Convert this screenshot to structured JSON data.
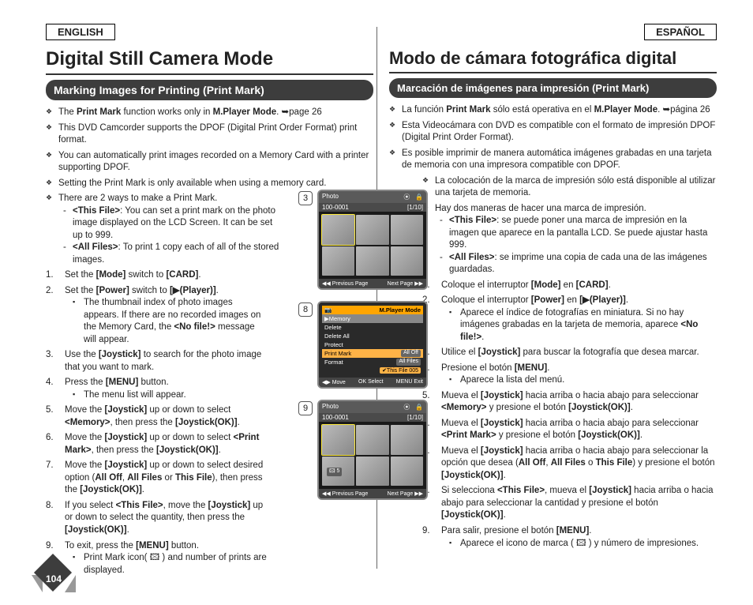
{
  "lang": {
    "en": "ENGLISH",
    "es": "ESPAÑOL"
  },
  "page_number": "104",
  "en": {
    "title": "Digital Still Camera Mode",
    "section": "Marking Images for Printing (Print Mark)",
    "bullets": [
      "The <b>Print Mark</b> function works only in <b>M.Player Mode</b>. ➥page 26",
      "This DVD Camcorder supports the DPOF (Digital Print Order Format) print format.",
      "You can automatically print images recorded on a Memory Card with a printer supporting DPOF.",
      "Setting the Print Mark is only available when using a memory card.",
      "There are 2 ways to make a Print Mark."
    ],
    "dash": [
      "<b>&lt;This File&gt;</b>: You can set a print mark on the photo image displayed on the LCD Screen. It can be set up to 999.",
      "<b>&lt;All Files&gt;</b>: To print 1 copy each of all of the stored images."
    ],
    "steps": [
      "Set the <b>[Mode]</b> switch to <b>[CARD]</b>.",
      "Set the <b>[Power]</b> switch to <b>[▶(Player)]</b>.",
      "Use the <b>[Joystick]</b> to search for the photo image that you want to mark.",
      "Press the <b>[MENU]</b> button.",
      "Move the <b>[Joystick]</b> up or down to select <b>&lt;Memory&gt;</b>, then press the <b>[Joystick(OK)]</b>.",
      "Move the <b>[Joystick]</b> up or down to select <b>&lt;Print Mark&gt;</b>, then press the <b>[Joystick(OK)]</b>.",
      "Move the <b>[Joystick]</b> up or down to select desired option (<b>All Off</b>, <b>All Files</b> or <b>This File</b>), then press the <b>[Joystick(OK)]</b>.",
      "If you select <b>&lt;This File&gt;</b>, move the <b>[Joystick]</b> up or down to select the quantity, then press the <b>[Joystick(OK)]</b>.",
      "To exit, press the <b>[MENU]</b> button."
    ],
    "step2_sub": "The thumbnail index of photo images appears. If there are no recorded images on the Memory Card, the <b>&lt;No file!&gt;</b> message will appear.",
    "step4_sub": "The menu list will appear.",
    "step9_sub": "Print Mark icon( 🖾 ) and number of prints are displayed."
  },
  "es": {
    "title": "Modo de cámara fotográfica digital",
    "section": "Marcación de imágenes para impresión (Print Mark)",
    "bullets": [
      "La función <b>Print Mark</b> sólo está operativa en el <b>M.Player Mode</b>. ➥página 26",
      "Esta Videocámara con DVD es compatible con el formato de impresión DPOF (Digital Print Order Format).",
      "Es posible imprimir de manera automática imágenes grabadas en una tarjeta de memoria con una impresora compatible con DPOF."
    ],
    "bullets_indent": [
      "La colocación de la marca de impresión sólo está disponible al utilizar una tarjeta de memoria.",
      "Hay dos maneras de hacer una marca de impresión."
    ],
    "dash": [
      "<b>&lt;This File&gt;</b>: se puede poner una marca de impresión en la imagen que aparece en la pantalla LCD. Se puede ajustar hasta 999.",
      "<b>&lt;All Files&gt;</b>: se imprime una copia de cada una de las imágenes guardadas."
    ],
    "steps": [
      "Coloque el interruptor <b>[Mode]</b> en <b>[CARD]</b>.",
      "Coloque el interruptor <b>[Power]</b> en <b>[▶(Player)]</b>.",
      "Utilice el <b>[Joystick]</b> para buscar la fotografía que desea marcar.",
      "Presione el botón <b>[MENU]</b>.",
      "Mueva el <b>[Joystick]</b> hacia arriba o hacia abajo para seleccionar <b>&lt;Memory&gt;</b> y presione el botón <b>[Joystick(OK)]</b>.",
      "Mueva el <b>[Joystick]</b> hacia arriba o hacia abajo para seleccionar <b>&lt;Print Mark&gt;</b> y presione el botón <b>[Joystick(OK)]</b>.",
      "Mueva el <b>[Joystick]</b> hacia arriba o hacia abajo para seleccionar la opción que desea (<b>All Off</b>, <b>All Files</b> o <b>This File</b>) y presione el botón <b>[Joystick(OK)]</b>.",
      "Si selecciona <b>&lt;This File&gt;</b>, mueva el <b>[Joystick]</b> hacia arriba o hacia abajo para seleccionar la cantidad y presione el botón <b>[Joystick(OK)]</b>.",
      "Para salir, presione el botón <b>[MENU]</b>."
    ],
    "step2_sub": "Aparece el índice de fotografías en miniatura. Si no hay imágenes grabadas en la tarjeta de memoria, aparece <b>&lt;No file!&gt;</b>.",
    "step4_sub": "Aparece la lista del menú.",
    "step9_sub": "Aparece el icono de marca ( 🖾 ) y número de impresiones."
  },
  "figures": {
    "nums": [
      "3",
      "8",
      "9"
    ],
    "photo_hdr": "Photo",
    "photo_id": "100-0001",
    "photo_count": "[1/10]",
    "prev": "◀◀ Previous Page",
    "next": "Next Page ▶▶",
    "menu_mode": "M.Player Mode",
    "menu_mem": "▶Memory",
    "menu_items": [
      "Delete",
      "Delete All",
      "Protect",
      "Print Mark",
      "Format"
    ],
    "menu_right": [
      "",
      "",
      "",
      "All Off",
      "All Files"
    ],
    "menu_chk": "✔This File 005",
    "menu_foot_move": "◀▶ Move",
    "menu_foot_sel": "OK Select",
    "menu_foot_exit": "MENU Exit",
    "mark_qty": "🖾  5"
  }
}
